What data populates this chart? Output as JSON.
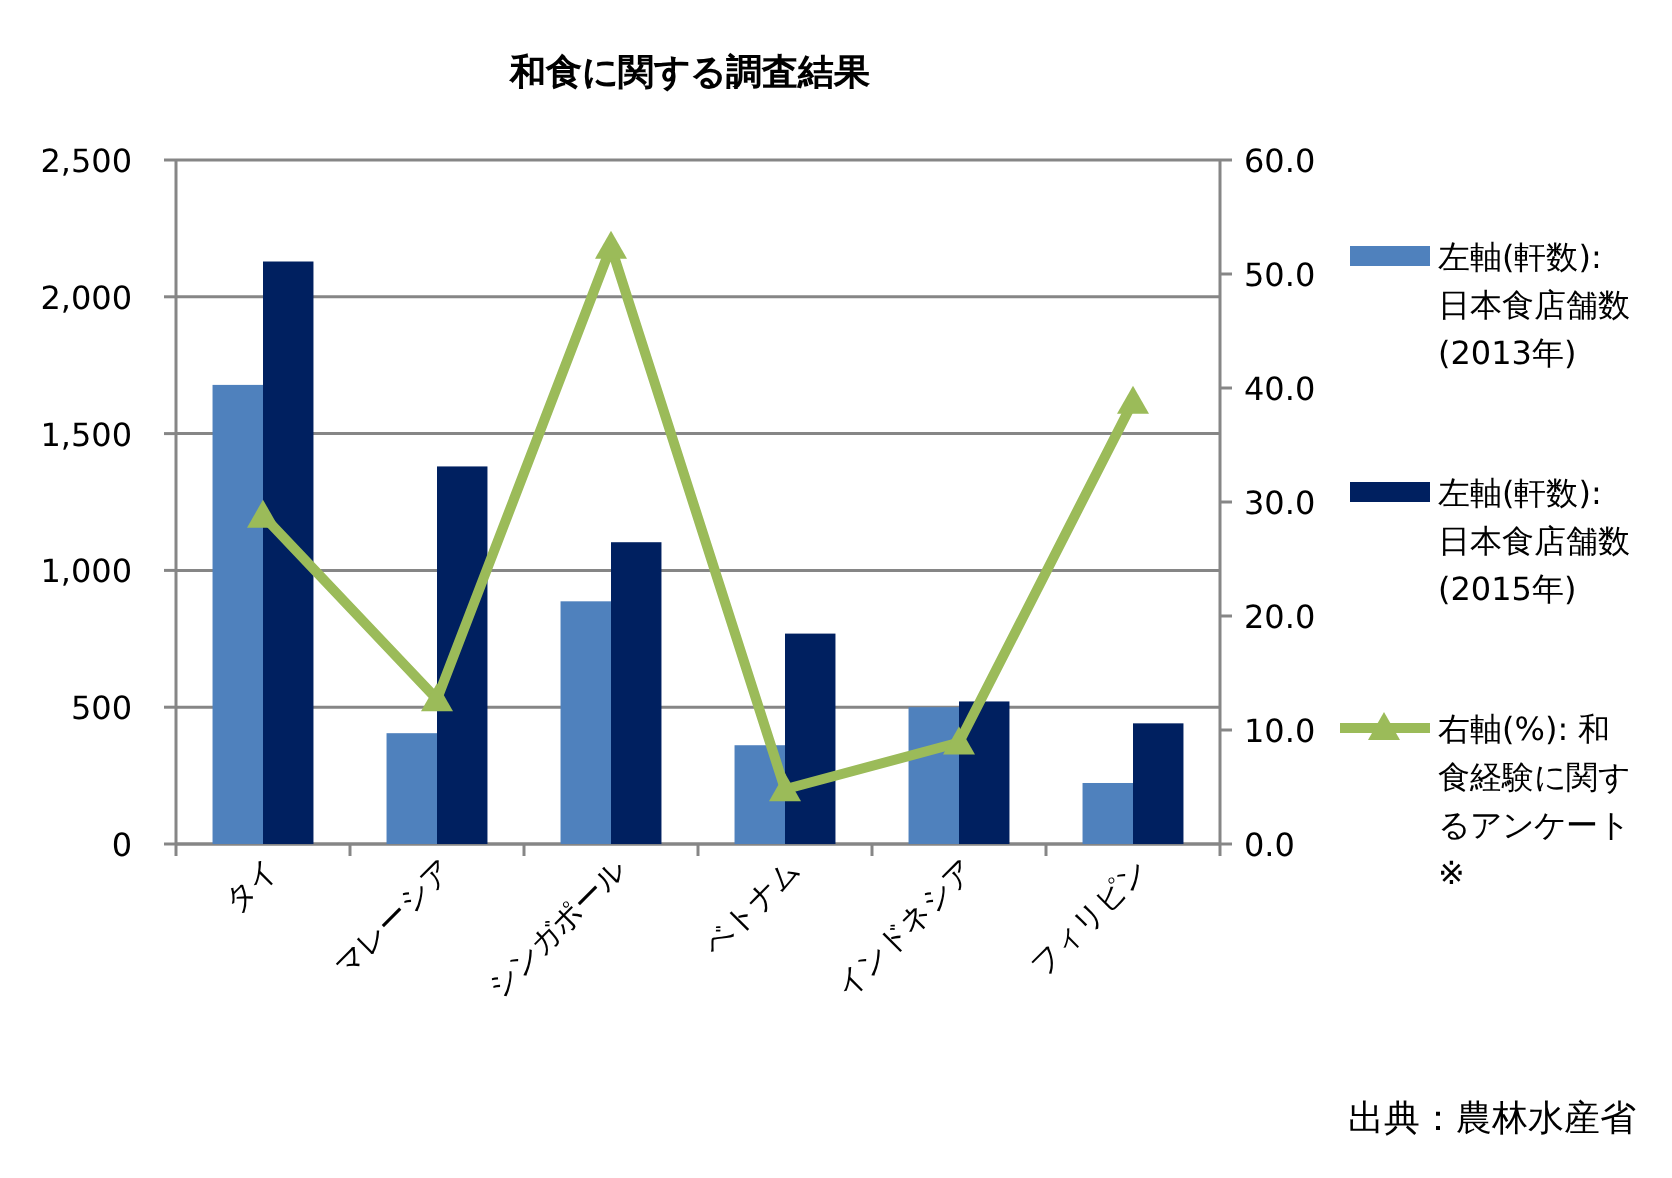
{
  "chart_data": {
    "type": "bar",
    "title": "和食に関する調査結果",
    "categories": [
      "タイ",
      "マレーシア",
      "シンガポール",
      "ベトナム",
      "インドネシア",
      "フィリピン"
    ],
    "series": [
      {
        "name": "左軸(軒数):\n日本食店舗数\n(2013年)",
        "color": "#4f81bd",
        "values": [
          1678,
          405,
          887,
          361,
          500,
          223
        ]
      },
      {
        "name": "左軸(軒数):\n日本食店舗数\n(2015年)",
        "color": "#002060",
        "values": [
          2129,
          1380,
          1103,
          769,
          521,
          441
        ]
      },
      {
        "name": "右軸(%): 和食経験に関するアンケート※",
        "type": "line",
        "axis": "y2",
        "color": "#9bbb59",
        "marker": "triangle",
        "values": [
          28.8,
          12.7,
          52.4,
          4.8,
          8.9,
          38.8
        ]
      }
    ],
    "ylim": [
      0,
      2500
    ],
    "yticks": [
      {
        "value": 0,
        "label": "0"
      },
      {
        "value": 500,
        "label": "500"
      },
      {
        "value": 1000,
        "label": "1,000"
      },
      {
        "value": 1500,
        "label": "1,500"
      },
      {
        "value": 2000,
        "label": "2,000"
      },
      {
        "value": 2500,
        "label": "2,500"
      }
    ],
    "y2lim": [
      0,
      60
    ],
    "y2ticks": [
      {
        "value": 0,
        "label": "0.0"
      },
      {
        "value": 10,
        "label": "10.0"
      },
      {
        "value": 20,
        "label": "20.0"
      },
      {
        "value": 30,
        "label": "30.0"
      },
      {
        "value": 40,
        "label": "40.0"
      },
      {
        "value": 50,
        "label": "50.0"
      },
      {
        "value": 60,
        "label": "60.0"
      }
    ],
    "grid": "y",
    "legend": "right",
    "annotations": [
      "出典：農林水産省"
    ]
  }
}
